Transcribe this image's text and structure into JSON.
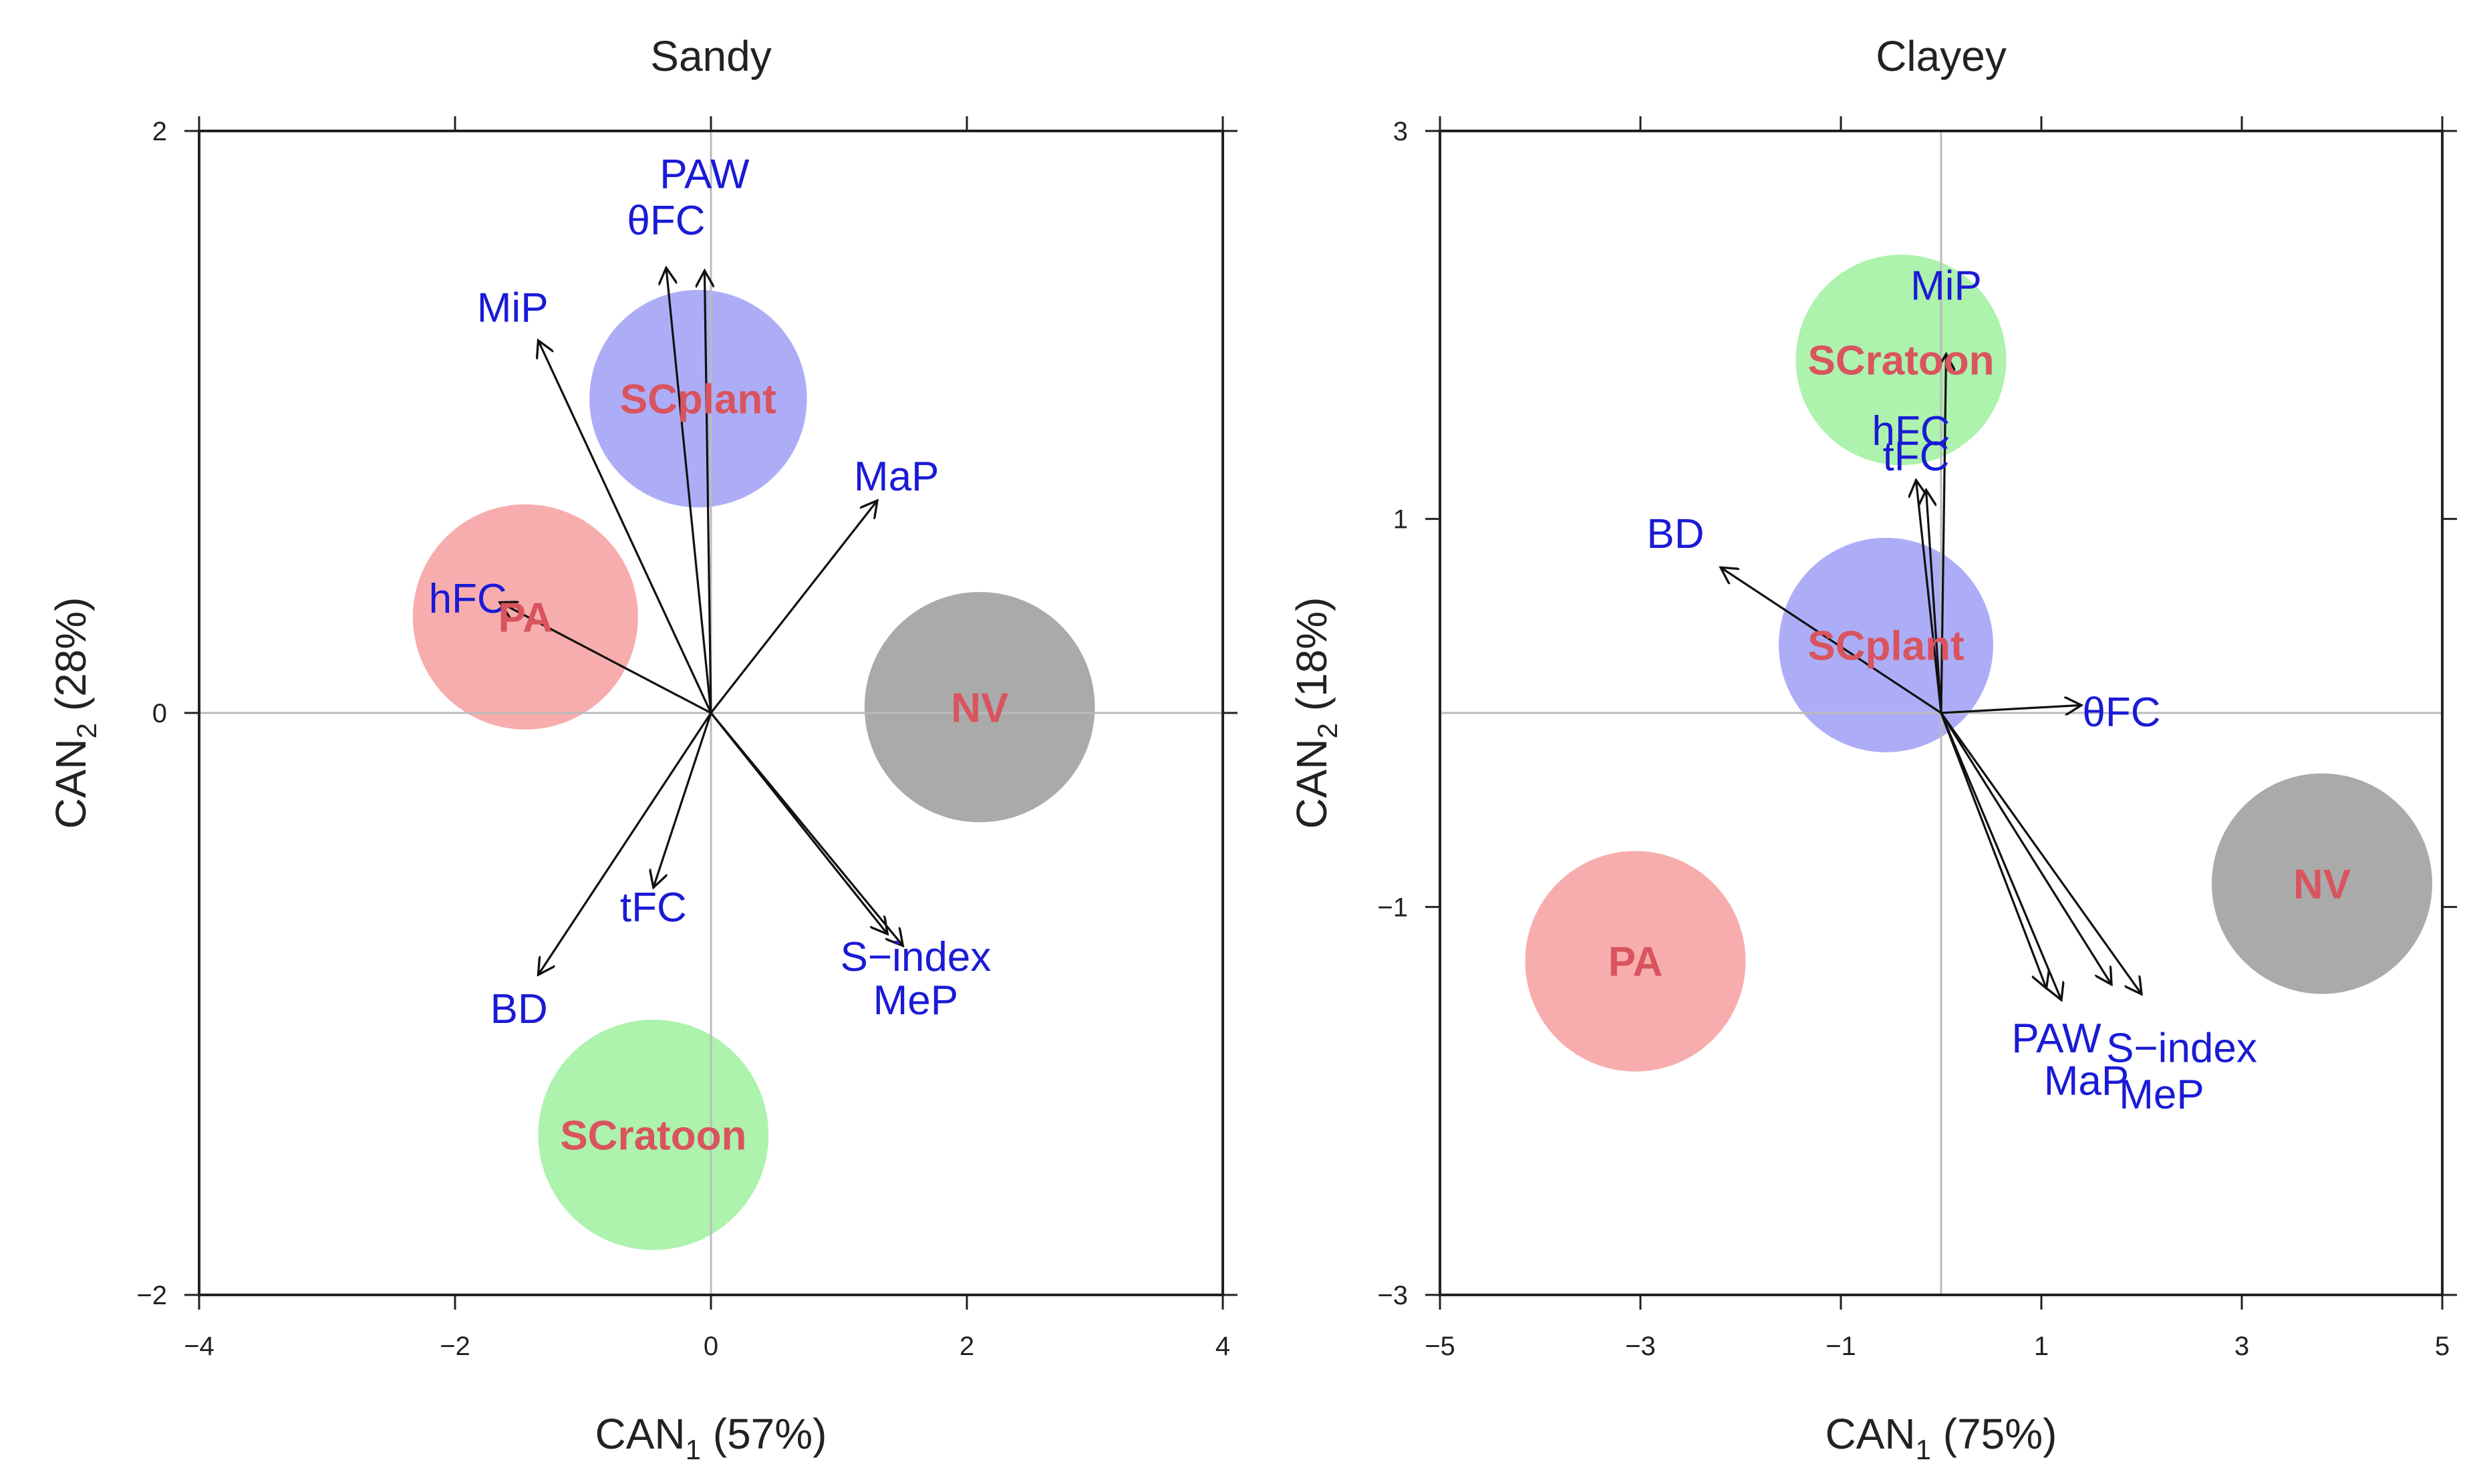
{
  "colors": {
    "arrow": "#111111",
    "variable_label": "#1a1ad6",
    "group_label": "#d9545e",
    "frame": "#222222",
    "zero_line": "#bbbbbb"
  },
  "chart_data": [
    {
      "type": "scatter",
      "subtype": "canonical-discriminant-biplot",
      "title": "Sandy",
      "xlabel": "CAN",
      "xlabel_sub": "1",
      "xlabel_pct": " (57%)",
      "ylabel": "CAN",
      "ylabel_sub": "2",
      "ylabel_pct": " (28%)",
      "xlim": [
        -4,
        4
      ],
      "ylim": [
        -2,
        2
      ],
      "x_ticks": [
        -4,
        -2,
        0,
        2,
        4
      ],
      "y_ticks": [
        -2,
        0,
        2
      ],
      "x_tick_labels": [
        "−4",
        "−2",
        "0",
        "2",
        "4"
      ],
      "y_tick_labels": [
        "−2",
        "0",
        "2"
      ],
      "grid": "zero lines only",
      "groups": [
        {
          "name": "SCplant",
          "x": -0.1,
          "y": 1.08,
          "radius": 0.85,
          "color": "#adadf7"
        },
        {
          "name": "PA",
          "x": -1.45,
          "y": 0.33,
          "radius": 0.88,
          "color": "#f7adad"
        },
        {
          "name": "NV",
          "x": 2.1,
          "y": 0.02,
          "radius": 0.9,
          "color": "#aaaaaa"
        },
        {
          "name": "SCratoon",
          "x": -0.45,
          "y": -1.45,
          "radius": 0.9,
          "color": "#adf2ad"
        }
      ],
      "vectors": [
        {
          "name": "PAW",
          "x": -0.05,
          "y": 1.52,
          "label_x": -0.05,
          "label_y": 1.85
        },
        {
          "name": "θFC",
          "x": -0.35,
          "y": 1.53,
          "label_x": -0.35,
          "label_y": 1.69
        },
        {
          "name": "MiP",
          "x": -1.35,
          "y": 1.28,
          "label_x": -1.55,
          "label_y": 1.39
        },
        {
          "name": "MaP",
          "x": 1.3,
          "y": 0.73,
          "label_x": 1.45,
          "label_y": 0.81
        },
        {
          "name": "hFC",
          "x": -1.65,
          "y": 0.38,
          "label_x": -1.9,
          "label_y": 0.39
        },
        {
          "name": "tFC",
          "x": -0.45,
          "y": -0.6,
          "label_x": -0.45,
          "label_y": -0.67
        },
        {
          "name": "BD",
          "x": -1.35,
          "y": -0.9,
          "label_x": -1.5,
          "label_y": -1.02
        },
        {
          "name": "S−index",
          "x": 1.5,
          "y": -0.8,
          "label_x": 1.6,
          "label_y": -0.84
        },
        {
          "name": "MeP",
          "x": 1.38,
          "y": -0.76,
          "label_x": 1.6,
          "label_y": -0.99
        }
      ]
    },
    {
      "type": "scatter",
      "subtype": "canonical-discriminant-biplot",
      "title": "Clayey",
      "xlabel": "CAN",
      "xlabel_sub": "1",
      "xlabel_pct": " (75%)",
      "ylabel": "CAN",
      "ylabel_sub": "2",
      "ylabel_pct": " (18%)",
      "xlim": [
        -5,
        5
      ],
      "ylim": [
        -3,
        3
      ],
      "x_ticks": [
        -5,
        -3,
        -1,
        1,
        3,
        5
      ],
      "y_ticks": [
        -3,
        -1,
        1,
        3
      ],
      "x_tick_labels": [
        "−5",
        "−3",
        "−1",
        "1",
        "3",
        "5"
      ],
      "y_tick_labels": [
        "−3",
        "−1",
        "1",
        "3"
      ],
      "grid": "zero lines only",
      "groups": [
        {
          "name": "SCratoon",
          "x": -0.4,
          "y": 1.82,
          "radius": 1.05,
          "color": "#adf2ad"
        },
        {
          "name": "SCplant",
          "x": -0.55,
          "y": 0.35,
          "radius": 1.07,
          "color": "#adadf7"
        },
        {
          "name": "PA",
          "x": -3.05,
          "y": -1.28,
          "radius": 1.1,
          "color": "#f7adad"
        },
        {
          "name": "NV",
          "x": 3.8,
          "y": -0.88,
          "radius": 1.1,
          "color": "#aaaaaa"
        }
      ],
      "vectors": [
        {
          "name": "MiP",
          "x": 0.05,
          "y": 1.85,
          "label_x": 0.05,
          "label_y": 2.2
        },
        {
          "name": "hFC",
          "x": -0.25,
          "y": 1.2,
          "label_x": -0.3,
          "label_y": 1.45
        },
        {
          "name": "tFC",
          "x": -0.15,
          "y": 1.15,
          "label_x": -0.25,
          "label_y": 1.32
        },
        {
          "name": "BD",
          "x": -2.2,
          "y": 0.75,
          "label_x": -2.65,
          "label_y": 0.92
        },
        {
          "name": "θFC",
          "x": 1.4,
          "y": 0.04,
          "label_x": 1.8,
          "label_y": 0.0
        },
        {
          "name": "PAW",
          "x": 1.2,
          "y": -1.48,
          "label_x": 1.15,
          "label_y": -1.68
        },
        {
          "name": "MaP",
          "x": 1.05,
          "y": -1.42,
          "label_x": 1.45,
          "label_y": -1.9
        },
        {
          "name": "S−index",
          "x": 2.0,
          "y": -1.45,
          "label_x": 2.4,
          "label_y": -1.73
        },
        {
          "name": "MeP",
          "x": 1.7,
          "y": -1.4,
          "label_x": 2.2,
          "label_y": -1.97
        }
      ]
    }
  ]
}
